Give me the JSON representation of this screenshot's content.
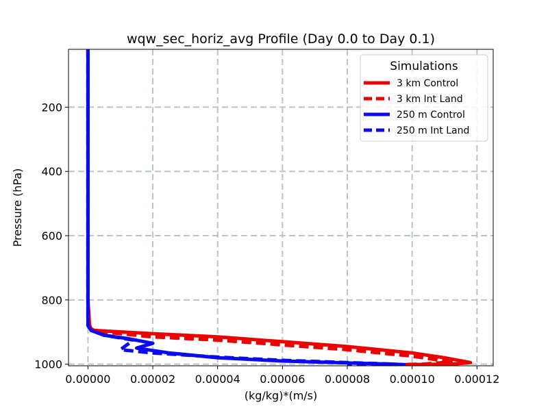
{
  "chart_data": {
    "type": "line",
    "title": "wqw_sec_horiz_avg Profile (Day 0.0 to Day 0.1)",
    "xlabel": "(kg/kg)*(m/s)",
    "ylabel": "Pressure (hPa)",
    "xlim": [
      -6e-06,
      0.000125
    ],
    "ylim": [
      1005,
      20
    ],
    "x_ticks": [
      "0.00000",
      "0.00002",
      "0.00004",
      "0.00006",
      "0.00008",
      "0.00010",
      "0.00012"
    ],
    "x_tick_values": [
      0,
      2e-05,
      4e-05,
      6e-05,
      8e-05,
      0.0001,
      0.00012
    ],
    "y_ticks": [
      "200",
      "400",
      "600",
      "800",
      "1000"
    ],
    "y_tick_values": [
      200,
      400,
      600,
      800,
      1000
    ],
    "grid": true,
    "legend": {
      "title": "Simulations",
      "position": "top-right"
    },
    "series": [
      {
        "name": "3 km Control",
        "color": "#ee0000",
        "style": "solid",
        "x": [
          0,
          0,
          0,
          0,
          5e-07,
          1e-06,
          2e-06,
          2e-05,
          4e-05,
          6e-05,
          8e-05,
          0.0001,
          0.00011,
          0.000118,
          0.000112,
          9e-05
        ],
        "y": [
          20,
          200,
          500,
          800,
          880,
          890,
          895,
          905,
          915,
          930,
          945,
          965,
          980,
          995,
          1000,
          1002
        ]
      },
      {
        "name": "3 km Int Land",
        "color": "#ee0000",
        "style": "dashed",
        "x": [
          0,
          0,
          0,
          0,
          5e-07,
          1e-06,
          2e-06,
          2e-05,
          4e-05,
          6e-05,
          8e-05,
          0.0001,
          0.000112,
          0.000103,
          9e-05
        ],
        "y": [
          20,
          200,
          500,
          800,
          880,
          890,
          897,
          915,
          925,
          940,
          955,
          975,
          993,
          1000,
          1002
        ]
      },
      {
        "name": "250 m Control",
        "color": "#0a0af0",
        "style": "solid",
        "x": [
          0,
          0,
          0,
          0,
          0,
          1e-06,
          5e-06,
          1.2e-05,
          2e-05,
          1.5e-05,
          2.5e-05,
          4e-05,
          6e-05,
          8e-05,
          9.5e-05,
          9.8e-05
        ],
        "y": [
          20,
          200,
          500,
          800,
          880,
          895,
          910,
          920,
          935,
          950,
          965,
          980,
          990,
          996,
          1000,
          1002
        ]
      },
      {
        "name": "250 m Int Land",
        "color": "#0a0af0",
        "style": "dashed",
        "x": [
          0,
          0,
          0,
          0,
          0,
          1e-06,
          5e-06,
          1.4e-05,
          1.2e-05,
          1e-05,
          2e-05,
          4e-05,
          6e-05,
          8e-05,
          9.5e-05,
          8e-05
        ],
        "y": [
          20,
          200,
          500,
          800,
          880,
          895,
          910,
          925,
          940,
          955,
          965,
          978,
          988,
          995,
          1000,
          1002
        ]
      }
    ]
  }
}
